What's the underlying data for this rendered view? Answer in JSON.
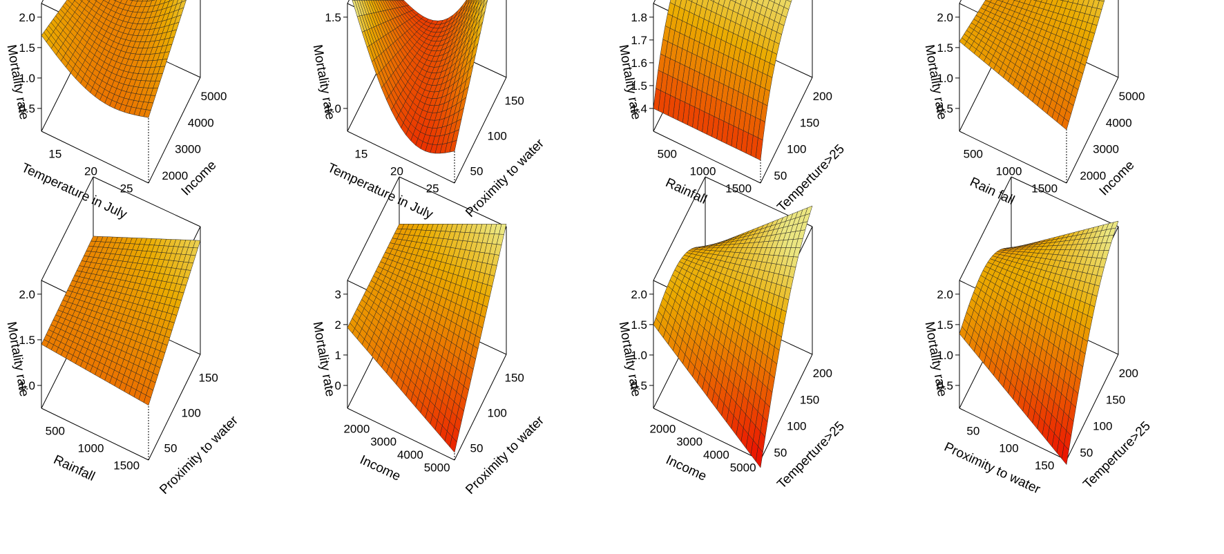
{
  "chart_data": [
    {
      "type": "surface3d",
      "xlabel": "Temperature in July",
      "ylabel": "Income",
      "zlabel": "Mortality rate",
      "xticks": [
        "15",
        "20",
        "25"
      ],
      "yticks": [
        "2000",
        "3000",
        "4000",
        "5000"
      ],
      "zticks": [
        "0.5",
        "1.0",
        "1.5",
        "2.0"
      ],
      "surface": {
        "f": "xquad",
        "ends": [
          1.7,
          1.2,
          1.18,
          2.15
        ]
      },
      "color": "heat"
    },
    {
      "type": "surface3d",
      "xlabel": "Temperature in July",
      "ylabel": "Proximity to water",
      "zlabel": "Mortality rate",
      "xticks": [
        "15",
        "20",
        "25"
      ],
      "yticks": [
        "50",
        "100",
        "150"
      ],
      "zticks": [
        "1.0",
        "1.5"
      ],
      "surface": {
        "f": "xquad",
        "ends": [
          1.68,
          1.05,
          1.05,
          1.78
        ]
      },
      "color": "heat"
    },
    {
      "type": "surface3d",
      "xlabel": "Rainfall",
      "ylabel": "Temperture>25",
      "zlabel": "Mortality rate",
      "xticks": [
        "500",
        "1000",
        "1500"
      ],
      "yticks": [
        "50",
        "100",
        "150",
        "200"
      ],
      "zticks": [
        "1.4",
        "1.5",
        "1.6",
        "1.7",
        "1.8"
      ],
      "surface": {
        "f": "ysat",
        "ends": [
          1.4,
          1.4,
          1.88,
          1.88
        ]
      },
      "color": "heat"
    },
    {
      "type": "surface3d",
      "xlabel": "Rain fall",
      "ylabel": "Income",
      "zlabel": "Mortality rate",
      "xticks": [
        "500",
        "1000",
        "1500"
      ],
      "yticks": [
        "2000",
        "3000",
        "4000",
        "5000"
      ],
      "zticks": [
        "0.5",
        "1.0",
        "1.5",
        "2.0"
      ],
      "surface": {
        "f": "plane",
        "ends": [
          1.6,
          1.0,
          1.25,
          2.2
        ]
      },
      "color": "heat"
    },
    {
      "type": "surface3d",
      "xlabel": "Rainfall",
      "ylabel": "Proximity to water",
      "zlabel": "Mortality rate",
      "xticks": [
        "500",
        "1000",
        "1500"
      ],
      "yticks": [
        "50",
        "100",
        "150"
      ],
      "zticks": [
        "1.0",
        "1.5",
        "2.0"
      ],
      "surface": {
        "f": "plane",
        "ends": [
          1.45,
          1.35,
          1.5,
          2.02
        ]
      },
      "color": "heat"
    },
    {
      "type": "surface3d",
      "xlabel": "Income",
      "ylabel": "Proximity to water",
      "zlabel": "Mortality rate",
      "xticks": [
        "2000",
        "3000",
        "4000",
        "5000"
      ],
      "yticks": [
        "50",
        "100",
        "150"
      ],
      "zticks": [
        "0",
        "1",
        "2",
        "3"
      ],
      "surface": {
        "f": "plane",
        "ends": [
          1.9,
          -0.5,
          1.9,
          3.6
        ]
      },
      "color": "heat"
    },
    {
      "type": "surface3d",
      "xlabel": "Income",
      "ylabel": "Temperture>25",
      "zlabel": "Mortality rate",
      "xticks": [
        "2000",
        "3000",
        "4000",
        "5000"
      ],
      "yticks": [
        "50",
        "100",
        "150",
        "200"
      ],
      "zticks": [
        "0.5",
        "1.0",
        "1.5",
        "2.0"
      ],
      "surface": {
        "f": "yhump",
        "ends": [
          1.5,
          0.0,
          0.8,
          2.35
        ]
      },
      "color": "heat"
    },
    {
      "type": "surface3d",
      "xlabel": "Proximity to water",
      "ylabel": "Temperture>25",
      "zlabel": "Mortality rate",
      "xticks": [
        "50",
        "100",
        "150"
      ],
      "yticks": [
        "50",
        "100",
        "150",
        "200"
      ],
      "zticks": [
        "0.5",
        "1.0",
        "1.5",
        "2.0"
      ],
      "surface": {
        "f": "yhump",
        "ends": [
          1.35,
          0.05,
          0.8,
          2.1
        ]
      },
      "color": "heat"
    }
  ]
}
